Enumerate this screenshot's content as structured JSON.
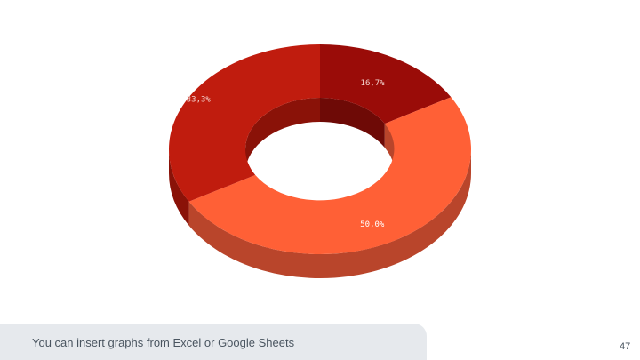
{
  "chart_data": {
    "type": "pie",
    "style": "3d-donut",
    "categories": [
      "",
      "",
      ""
    ],
    "values": [
      16.7,
      50.0,
      33.3
    ],
    "labels": [
      "16,7%",
      "50,0%",
      "33,3%"
    ],
    "colors": [
      "#9a0c08",
      "#ff6036",
      "#c01c0e"
    ],
    "side_colors": [
      "#6e0a06",
      "#b9452b",
      "#8a1208"
    ],
    "label_colors": [
      "#f4d5d0",
      "#ffffff",
      "#f4d5d0"
    ],
    "title": "",
    "legend": "none"
  },
  "footer": {
    "caption": "You can insert graphs from Excel or Google Sheets",
    "page_number": "47"
  }
}
